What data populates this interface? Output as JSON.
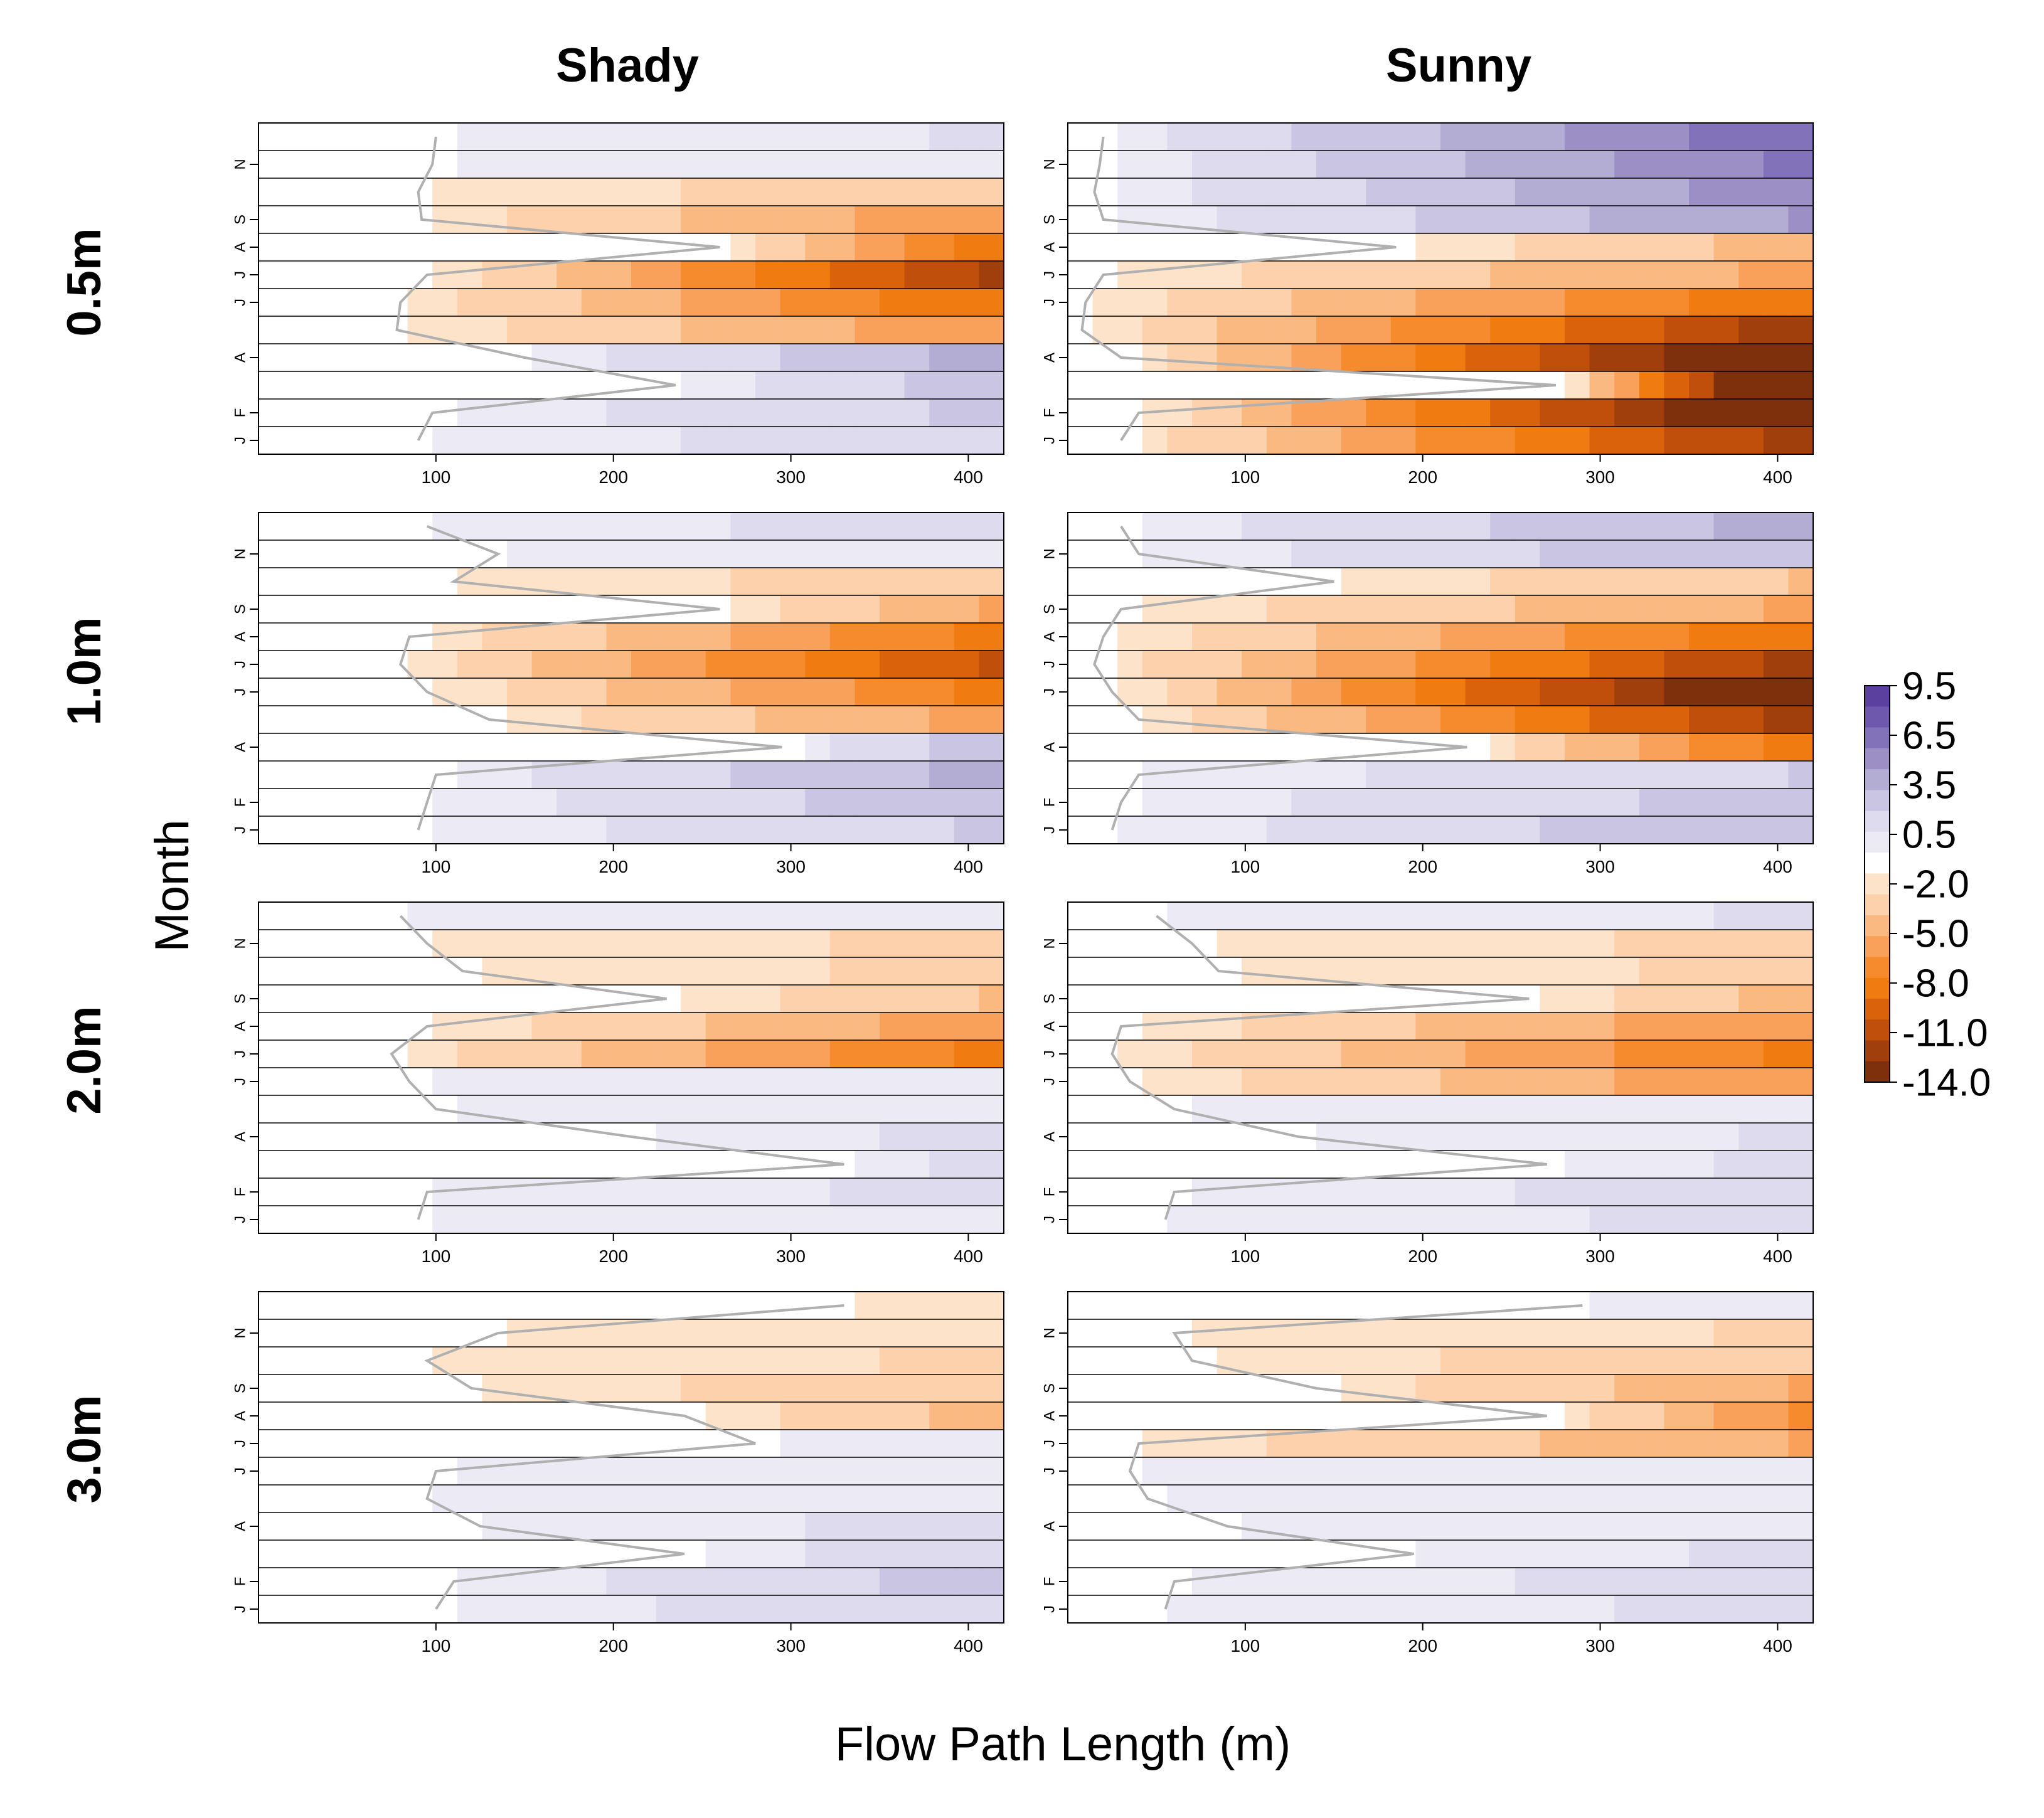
{
  "chart_data": {
    "type": "heatmap",
    "column_titles": [
      "Shady",
      "Sunny"
    ],
    "row_titles": [
      "0.5m",
      "1.0m",
      "2.0m",
      "3.0m"
    ],
    "xlabel": "Flow Path Length (m)",
    "ylabel": "Month",
    "x_range": [
      0,
      420
    ],
    "x_ticks": [
      "100",
      "200",
      "300",
      "400"
    ],
    "month_ticks": [
      {
        "label": "J",
        "month": 1
      },
      {
        "label": "F",
        "month": 2
      },
      {
        "label": "A",
        "month": 4
      },
      {
        "label": "J",
        "month": 6
      },
      {
        "label": "J",
        "month": 7
      },
      {
        "label": "A",
        "month": 8
      },
      {
        "label": "S",
        "month": 9
      },
      {
        "label": "N",
        "month": 11
      }
    ],
    "colorbar": {
      "labels": [
        "9.5",
        "6.5",
        "3.5",
        "0.5",
        "-2.0",
        "-5.0",
        "-8.0",
        "-11.0",
        "-14.0"
      ],
      "colors": [
        "#5c40a0",
        "#6d58ad",
        "#8272b9",
        "#9b8fc6",
        "#b3acd3",
        "#c9c5e2",
        "#dddbed",
        "#ecebf5",
        "#ffffff",
        "#fde3ca",
        "#fcd1ac",
        "#fbb982",
        "#f9a05a",
        "#f68b2e",
        "#f07b10",
        "#d9620b",
        "#bf4f0a",
        "#a03f0b",
        "#7e2f0c"
      ]
    },
    "panels": [
      {
        "row": "0.5m",
        "column": "Shady",
        "shape": [
          3,
          8,
          6,
          9,
          7,
          2
        ],
        "rank_depth": [
          3,
          8
        ],
        "isotherm": [
          100,
          98,
          90,
          92,
          260,
          95,
          80,
          78,
          150,
          235,
          98,
          90
        ],
        "sun_peak": 9
      },
      {
        "row": "0.5m",
        "column": "Sunny",
        "shape": [
          5,
          13,
          10,
          14,
          12,
          3
        ],
        "rank_depth": [
          5,
          14
        ],
        "isotherm": [
          20,
          18,
          15,
          20,
          185,
          20,
          10,
          8,
          30,
          275,
          40,
          30
        ],
        "sun_peak": 9
      },
      {
        "row": "1.0m",
        "column": "Shady",
        "shape": [
          3,
          8,
          6,
          10,
          6,
          2
        ],
        "rank_depth": [
          3,
          7
        ],
        "isotherm": [
          95,
          135,
          110,
          260,
          85,
          80,
          95,
          130,
          295,
          100,
          95,
          90
        ],
        "sun_peak": 8
      },
      {
        "row": "1.0m",
        "column": "Sunny",
        "shape": [
          3,
          9,
          7,
          13,
          10,
          2
        ],
        "rank_depth": [
          3,
          11
        ],
        "isotherm": [
          30,
          40,
          150,
          30,
          20,
          15,
          25,
          40,
          225,
          40,
          30,
          25
        ],
        "sun_peak": 8
      },
      {
        "row": "2.0m",
        "column": "Shady",
        "shape": [
          2,
          6,
          6,
          10,
          5,
          2
        ],
        "rank_depth": [
          1,
          5
        ],
        "isotherm": [
          80,
          95,
          115,
          230,
          95,
          75,
          85,
          100,
          210,
          330,
          95,
          90
        ],
        "sun_peak": 7
      },
      {
        "row": "2.0m",
        "column": "Sunny",
        "shape": [
          2,
          7,
          6,
          11,
          7,
          2
        ],
        "rank_depth": [
          1,
          5
        ],
        "isotherm": [
          50,
          70,
          85,
          260,
          30,
          25,
          35,
          60,
          130,
          270,
          60,
          55
        ],
        "sun_peak": 7
      },
      {
        "row": "3.0m",
        "column": "Shady",
        "shape": [
          1,
          5,
          5,
          11,
          4,
          1
        ],
        "rank_depth": [
          2,
          2
        ],
        "isotherm": [
          330,
          135,
          95,
          120,
          240,
          280,
          100,
          95,
          125,
          240,
          110,
          100
        ],
        "sun_peak": 6
      },
      {
        "row": "3.0m",
        "column": "Sunny",
        "shape": [
          2,
          6,
          5,
          11,
          5,
          2
        ],
        "rank_depth": [
          1,
          4
        ],
        "isotherm": [
          290,
          60,
          70,
          140,
          270,
          40,
          35,
          45,
          90,
          195,
          60,
          55
        ],
        "sun_peak": 6
      }
    ]
  }
}
